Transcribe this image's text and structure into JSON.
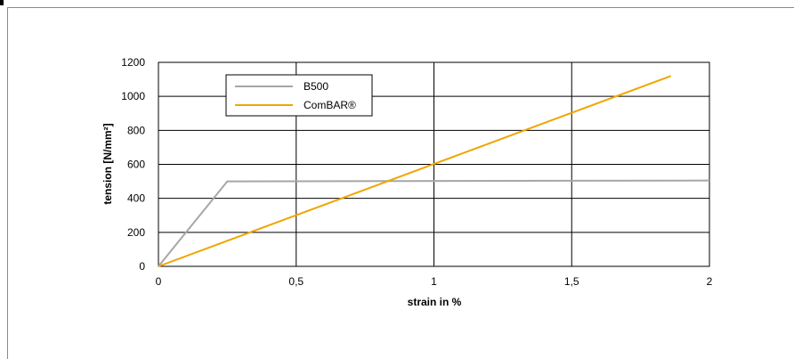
{
  "chart_data": {
    "type": "line",
    "title": "",
    "xlabel": "strain in %",
    "ylabel": "tension [N/mm²]",
    "xlim": [
      0,
      2
    ],
    "ylim": [
      0,
      1200
    ],
    "x_ticks": [
      0,
      0.5,
      1,
      1.5,
      2
    ],
    "x_tick_labels": [
      "0",
      "0,5",
      "1",
      "1,5",
      "2"
    ],
    "y_ticks": [
      0,
      200,
      400,
      600,
      800,
      1000,
      1200
    ],
    "y_tick_labels": [
      "0",
      "200",
      "400",
      "600",
      "800",
      "1000",
      "1200"
    ],
    "grid": true,
    "legend_position": "top-left",
    "series": [
      {
        "name": "B500",
        "color": "#a6a6a6",
        "x": [
          0,
          0.25,
          2
        ],
        "y": [
          0,
          500,
          505
        ]
      },
      {
        "name": "ComBAR®",
        "color": "#f0a500",
        "x": [
          0,
          1.86
        ],
        "y": [
          0,
          1120
        ]
      }
    ]
  }
}
